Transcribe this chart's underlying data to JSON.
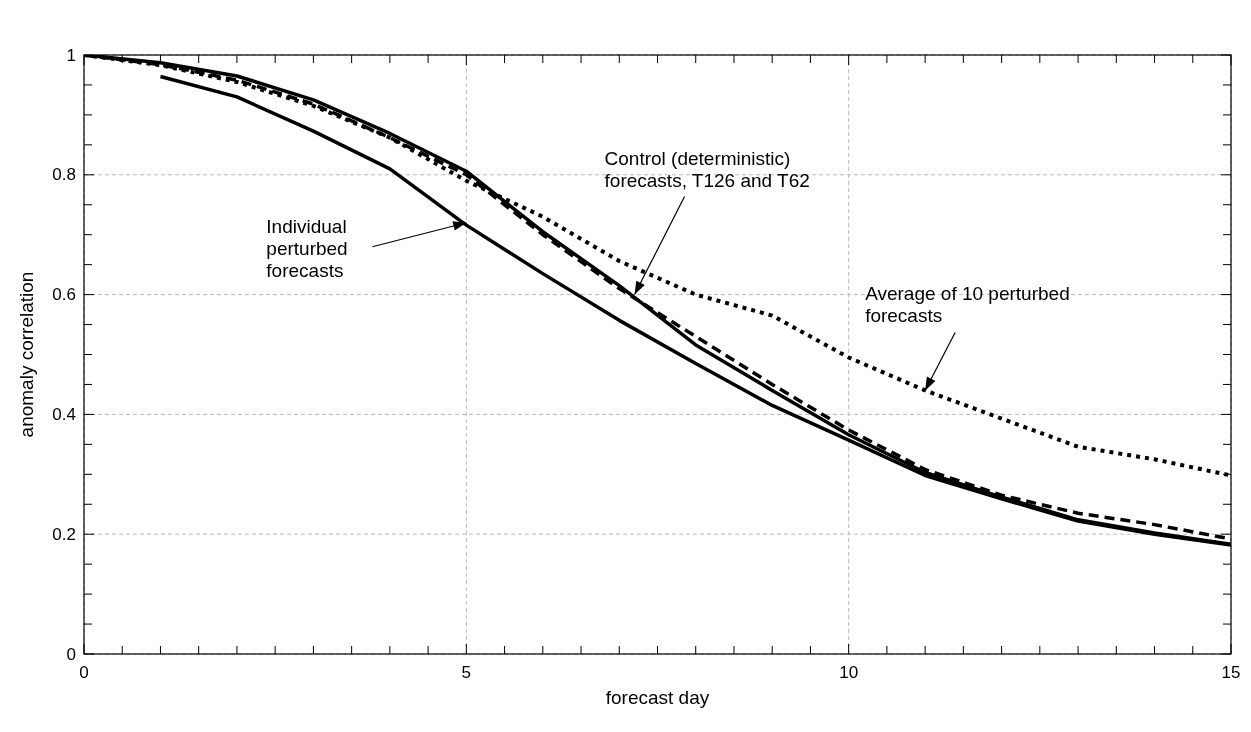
{
  "chart_data": {
    "type": "line",
    "xlabel": "forecast day",
    "ylabel": "anomaly correlation",
    "xlim": [
      0,
      15
    ],
    "xticks": [
      0,
      {
        "value": 0.5,
        "label": null
      },
      {
        "value": 1,
        "label": null
      },
      {
        "value": 1.5,
        "label": null
      },
      {
        "value": 2,
        "label": null
      },
      {
        "value": 2.5,
        "label": null
      },
      {
        "value": 3,
        "label": null
      },
      {
        "value": 3.5,
        "label": null
      },
      {
        "value": 4,
        "label": null
      },
      {
        "value": 4.5,
        "label": null
      },
      5,
      {
        "value": 5.5,
        "label": null
      },
      {
        "value": 6,
        "label": null
      },
      {
        "value": 6.5,
        "label": null
      },
      {
        "value": 7,
        "label": null
      },
      {
        "value": 7.5,
        "label": null
      },
      {
        "value": 8,
        "label": null
      },
      {
        "value": 8.5,
        "label": null
      },
      {
        "value": 9,
        "label": null
      },
      {
        "value": 9.5,
        "label": null
      },
      10,
      {
        "value": 10.5,
        "label": null
      },
      {
        "value": 11,
        "label": null
      },
      {
        "value": 11.5,
        "label": null
      },
      {
        "value": 12,
        "label": null
      },
      {
        "value": 12.5,
        "label": null
      },
      {
        "value": 13,
        "label": null
      },
      {
        "value": 13.5,
        "label": null
      },
      {
        "value": 14,
        "label": null
      },
      {
        "value": 14.5,
        "label": null
      },
      15
    ],
    "ylim": [
      0,
      1
    ],
    "yticks": [
      0,
      {
        "value": 0.05,
        "label": null
      },
      {
        "value": 0.1,
        "label": null
      },
      {
        "value": 0.15,
        "label": null
      },
      0.2,
      {
        "value": 0.25,
        "label": null
      },
      {
        "value": 0.3,
        "label": null
      },
      {
        "value": 0.35,
        "label": null
      },
      0.4,
      {
        "value": 0.45,
        "label": null
      },
      {
        "value": 0.5,
        "label": null
      },
      {
        "value": 0.55,
        "label": null
      },
      0.6,
      {
        "value": 0.65,
        "label": null
      },
      {
        "value": 0.7,
        "label": null
      },
      {
        "value": 0.75,
        "label": null
      },
      0.8,
      {
        "value": 0.85,
        "label": null
      },
      {
        "value": 0.9,
        "label": null
      },
      {
        "value": 0.95,
        "label": null
      },
      1
    ],
    "grid": true,
    "legend": false,
    "marker": "none",
    "x": [
      0,
      1,
      2,
      3,
      4,
      5,
      6,
      7,
      8,
      9,
      10,
      11,
      12,
      13,
      14,
      15
    ],
    "series": [
      {
        "color": "#000000",
        "line_style": "solid",
        "values": [
          1.0,
          0.987,
          0.965,
          0.925,
          0.869,
          0.806,
          0.705,
          0.615,
          0.516,
          0.44,
          0.366,
          0.303,
          0.262,
          0.224,
          0.202,
          0.183
        ]
      },
      {
        "color": "#000000",
        "line_style": "dashed",
        "values": [
          1.0,
          0.984,
          0.958,
          0.918,
          0.862,
          0.8,
          0.7,
          0.61,
          0.53,
          0.45,
          0.374,
          0.308,
          0.265,
          0.235,
          0.216,
          0.192
        ]
      },
      {
        "color": "#000000",
        "line_style": "solid",
        "values": [
          null,
          0.964,
          0.93,
          0.873,
          0.81,
          0.716,
          0.635,
          0.557,
          0.485,
          0.415,
          0.357,
          0.298,
          0.259,
          0.222,
          0.2,
          0.182
        ]
      },
      {
        "color": "#000000",
        "line_style": "dotted",
        "values": [
          1.0,
          0.983,
          0.955,
          0.915,
          0.862,
          0.79,
          0.73,
          0.656,
          0.6,
          0.565,
          0.495,
          0.44,
          0.393,
          0.346,
          0.325,
          0.298
        ]
      }
    ],
    "annotations": [
      {
        "text": "Individual\nperturbed\nforecasts",
        "x": 5,
        "y": 0.72
      },
      {
        "text": "Control (deterministic)\nforecasts, T126 and T62",
        "x": 7.2,
        "y": 0.6
      },
      {
        "text": "Average of 10 perturbed\nforecasts",
        "x": 11,
        "y": 0.44
      }
    ]
  }
}
